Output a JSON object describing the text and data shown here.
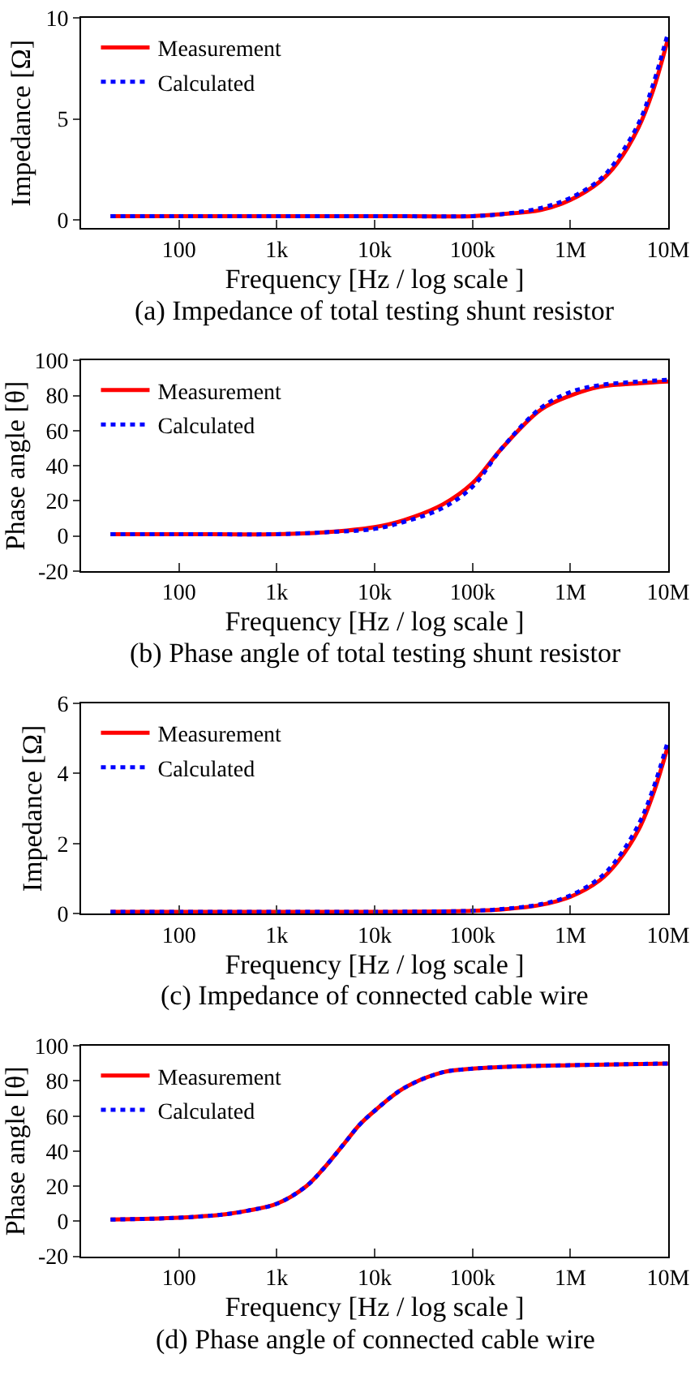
{
  "chart_data": [
    {
      "type": "line",
      "title": "(a) Impedance of total testing shunt resistor",
      "xlabel": "Frequency [Hz / log scale ]",
      "ylabel": "Impedance [Ω]",
      "log": "x",
      "legend": "top left",
      "x": [
        20,
        100,
        1000,
        10000,
        100000,
        200000,
        500000,
        1000000,
        2000000,
        3000000,
        5000000,
        7000000,
        10000000
      ],
      "series": [
        {
          "name": "Measurement",
          "color": "#ff0000",
          "line_style": "solid",
          "values": [
            0.2,
            0.2,
            0.2,
            0.2,
            0.2,
            0.3,
            0.5,
            1.0,
            1.9,
            2.8,
            4.6,
            6.4,
            9.0
          ]
        },
        {
          "name": "Calculated",
          "color": "#0000ff",
          "line_style": "dotted",
          "values": [
            0.2,
            0.2,
            0.2,
            0.2,
            0.2,
            0.3,
            0.6,
            1.1,
            2.0,
            3.0,
            4.8,
            6.7,
            9.3
          ]
        }
      ],
      "xlim": [
        10,
        10000000
      ],
      "xticks": [
        100,
        {
          "value": 1000,
          "label": "1k"
        },
        {
          "value": 10000,
          "label": "10k"
        },
        {
          "value": 100000,
          "label": "100k"
        },
        {
          "value": 1000000,
          "label": "1M"
        },
        {
          "value": 10000000,
          "label": "10M"
        }
      ],
      "ylim": [
        -0.4,
        10
      ],
      "yticks": [
        0,
        5,
        10
      ]
    },
    {
      "type": "line",
      "title": "(b) Phase angle of total testing shunt resistor",
      "xlabel": "Frequency [Hz / log scale ]",
      "ylabel": "Phase angle [θ]",
      "log": "x",
      "legend": "top left",
      "x": [
        20,
        100,
        1000,
        3000,
        10000,
        20000,
        50000,
        100000,
        200000,
        500000,
        1000000,
        2000000,
        5000000,
        10000000
      ],
      "series": [
        {
          "name": "Measurement",
          "color": "#ff0000",
          "line_style": "solid",
          "values": [
            1,
            1,
            1,
            2,
            5,
            9,
            18,
            30,
            50,
            72,
            80,
            85,
            87,
            88
          ]
        },
        {
          "name": "Calculated",
          "color": "#0000ff",
          "line_style": "dotted",
          "values": [
            1,
            1,
            1,
            2,
            4,
            8,
            16,
            28,
            50,
            73,
            82,
            86,
            88,
            89
          ]
        }
      ],
      "xlim": [
        10,
        10000000
      ],
      "xticks": [
        100,
        {
          "value": 1000,
          "label": "1k"
        },
        {
          "value": 10000,
          "label": "10k"
        },
        {
          "value": 100000,
          "label": "100k"
        },
        {
          "value": 1000000,
          "label": "1M"
        },
        {
          "value": 10000000,
          "label": "10M"
        }
      ],
      "ylim": [
        -20,
        100
      ],
      "yticks": [
        -20,
        0,
        20,
        40,
        60,
        80,
        100
      ]
    },
    {
      "type": "line",
      "title": "(c) Impedance of connected cable wire",
      "xlabel": "Frequency [Hz / log scale ]",
      "ylabel": "Impedance [Ω]",
      "log": "x",
      "legend": "top left",
      "x": [
        20,
        100,
        1000,
        10000,
        100000,
        200000,
        500000,
        1000000,
        2000000,
        3000000,
        5000000,
        7000000,
        10000000
      ],
      "series": [
        {
          "name": "Measurement",
          "color": "#ff0000",
          "line_style": "solid",
          "values": [
            0.05,
            0.05,
            0.05,
            0.05,
            0.08,
            0.12,
            0.25,
            0.48,
            0.95,
            1.45,
            2.4,
            3.4,
            4.8
          ]
        },
        {
          "name": "Calculated",
          "color": "#0000ff",
          "line_style": "dotted",
          "values": [
            0.05,
            0.05,
            0.05,
            0.05,
            0.08,
            0.13,
            0.27,
            0.52,
            1.02,
            1.55,
            2.55,
            3.55,
            4.95
          ]
        }
      ],
      "xlim": [
        10,
        10000000
      ],
      "xticks": [
        100,
        {
          "value": 1000,
          "label": "1k"
        },
        {
          "value": 10000,
          "label": "10k"
        },
        {
          "value": 100000,
          "label": "100k"
        },
        {
          "value": 1000000,
          "label": "1M"
        },
        {
          "value": 10000000,
          "label": "10M"
        }
      ],
      "ylim": [
        0,
        6
      ],
      "yticks": [
        0,
        2,
        4,
        6
      ]
    },
    {
      "type": "line",
      "title": "(d) Phase angle of connected cable wire",
      "xlabel": "Frequency [Hz / log scale ]",
      "ylabel": "Phase angle [θ]",
      "log": "x",
      "legend": "top left",
      "x": [
        20,
        100,
        300,
        500,
        1000,
        2000,
        3000,
        5000,
        7000,
        10000,
        20000,
        50000,
        100000,
        200000,
        1000000,
        10000000
      ],
      "series": [
        {
          "name": "Measurement",
          "color": "#ff0000",
          "line_style": "solid",
          "values": [
            1,
            2,
            4,
            6,
            10,
            20,
            30,
            45,
            55,
            63,
            76,
            85,
            87,
            88,
            89,
            90
          ]
        },
        {
          "name": "Calculated",
          "color": "#0000ff",
          "line_style": "dotted",
          "values": [
            1,
            2,
            4,
            6,
            10,
            20,
            30,
            45,
            55,
            63,
            76,
            85,
            87,
            88,
            89,
            90
          ]
        }
      ],
      "xlim": [
        10,
        10000000
      ],
      "xticks": [
        100,
        {
          "value": 1000,
          "label": "1k"
        },
        {
          "value": 10000,
          "label": "10k"
        },
        {
          "value": 100000,
          "label": "100k"
        },
        {
          "value": 1000000,
          "label": "1M"
        },
        {
          "value": 10000000,
          "label": "10M"
        }
      ],
      "ylim": [
        -20,
        100
      ],
      "yticks": [
        -20,
        0,
        20,
        40,
        60,
        80,
        100
      ]
    }
  ]
}
